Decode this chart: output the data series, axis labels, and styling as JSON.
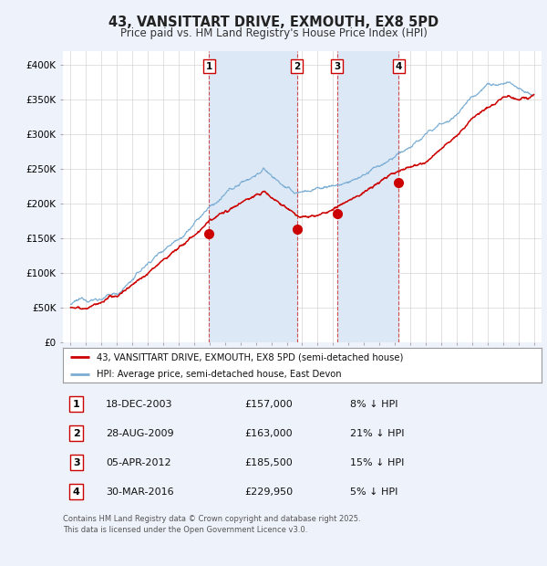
{
  "title": "43, VANSITTART DRIVE, EXMOUTH, EX8 5PD",
  "subtitle": "Price paid vs. HM Land Registry's House Price Index (HPI)",
  "legend_label_red": "43, VANSITTART DRIVE, EXMOUTH, EX8 5PD (semi-detached house)",
  "legend_label_blue": "HPI: Average price, semi-detached house, East Devon",
  "footer": "Contains HM Land Registry data © Crown copyright and database right 2025.\nThis data is licensed under the Open Government Licence v3.0.",
  "transactions": [
    {
      "num": 1,
      "date": "18-DEC-2003",
      "price": 157000,
      "pct": "8% ↓ HPI",
      "year_x": 2003.96
    },
    {
      "num": 2,
      "date": "28-AUG-2009",
      "price": 163000,
      "pct": "21% ↓ HPI",
      "year_x": 2009.65
    },
    {
      "num": 3,
      "date": "05-APR-2012",
      "price": 185500,
      "pct": "15% ↓ HPI",
      "year_x": 2012.27
    },
    {
      "num": 4,
      "date": "30-MAR-2016",
      "price": 229950,
      "pct": "5% ↓ HPI",
      "year_x": 2016.25
    }
  ],
  "price_labels": [
    "£157,000",
    "£163,000",
    "£185,500",
    "£229,950"
  ],
  "background_color": "#eef2fb",
  "plot_bg_color": "#ffffff",
  "red_color": "#cc0000",
  "blue_color": "#7aadd4",
  "shade_color": "#dce8f5",
  "dashed_color": "#cc3333",
  "ylim": [
    0,
    420000
  ],
  "xlim_start": 1994.5,
  "xlim_end": 2025.5,
  "yticks": [
    0,
    50000,
    100000,
    150000,
    200000,
    250000,
    300000,
    350000,
    400000
  ],
  "ytick_labels": [
    "£0",
    "£50K",
    "£100K",
    "£150K",
    "£200K",
    "£250K",
    "£300K",
    "£350K",
    "£400K"
  ],
  "xticks": [
    1995,
    1996,
    1997,
    1998,
    1999,
    2000,
    2001,
    2002,
    2003,
    2004,
    2005,
    2006,
    2007,
    2008,
    2009,
    2010,
    2011,
    2012,
    2013,
    2014,
    2015,
    2016,
    2017,
    2018,
    2019,
    2020,
    2021,
    2022,
    2023,
    2024,
    2025
  ]
}
